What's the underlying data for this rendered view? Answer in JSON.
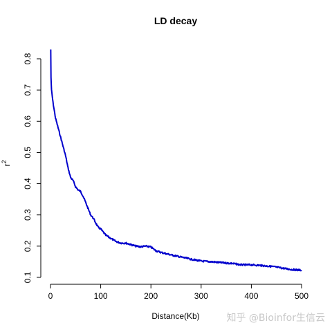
{
  "watermark": "知乎 @Bioinfor生信云",
  "chart_data": {
    "type": "line",
    "title": "LD decay",
    "xlabel": "Distance(Kb)",
    "ylabel": "r",
    "ylabel_superscript": "2",
    "xlim": [
      0,
      500
    ],
    "ylim": [
      0.1,
      0.8
    ],
    "xticks": [
      0,
      100,
      200,
      300,
      400,
      500
    ],
    "yticks": [
      0.1,
      0.2,
      0.3,
      0.4,
      0.5,
      0.6,
      0.7,
      0.8
    ],
    "grid": false,
    "series": [
      {
        "color": "#0000cc",
        "points": [
          [
            0.5,
            0.83
          ],
          [
            1,
            0.74
          ],
          [
            2,
            0.7
          ],
          [
            5,
            0.66
          ],
          [
            10,
            0.61
          ],
          [
            15,
            0.58
          ],
          [
            20,
            0.55
          ],
          [
            25,
            0.52
          ],
          [
            30,
            0.49
          ],
          [
            35,
            0.45
          ],
          [
            40,
            0.42
          ],
          [
            45,
            0.41
          ],
          [
            50,
            0.39
          ],
          [
            55,
            0.38
          ],
          [
            60,
            0.375
          ],
          [
            65,
            0.36
          ],
          [
            70,
            0.34
          ],
          [
            75,
            0.32
          ],
          [
            80,
            0.3
          ],
          [
            85,
            0.29
          ],
          [
            90,
            0.275
          ],
          [
            95,
            0.26
          ],
          [
            100,
            0.255
          ],
          [
            105,
            0.245
          ],
          [
            110,
            0.235
          ],
          [
            120,
            0.225
          ],
          [
            130,
            0.215
          ],
          [
            140,
            0.21
          ],
          [
            150,
            0.21
          ],
          [
            160,
            0.205
          ],
          [
            170,
            0.2
          ],
          [
            180,
            0.198
          ],
          [
            190,
            0.2
          ],
          [
            200,
            0.197
          ],
          [
            210,
            0.185
          ],
          [
            220,
            0.18
          ],
          [
            240,
            0.172
          ],
          [
            260,
            0.165
          ],
          [
            280,
            0.158
          ],
          [
            300,
            0.152
          ],
          [
            320,
            0.15
          ],
          [
            340,
            0.147
          ],
          [
            360,
            0.145
          ],
          [
            380,
            0.14
          ],
          [
            400,
            0.14
          ],
          [
            420,
            0.138
          ],
          [
            440,
            0.135
          ],
          [
            460,
            0.13
          ],
          [
            480,
            0.125
          ],
          [
            500,
            0.123
          ]
        ]
      }
    ]
  }
}
